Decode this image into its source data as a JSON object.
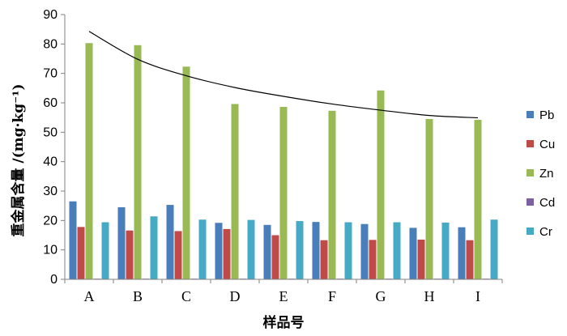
{
  "chart_data": {
    "type": "bar",
    "xlabel": "样品号",
    "ylabel": "重金属含量 /(mg·kg⁻¹)",
    "ylim": [
      0,
      90
    ],
    "yticks": [
      0,
      10,
      20,
      30,
      40,
      50,
      60,
      70,
      80,
      90
    ],
    "categories": [
      "A",
      "B",
      "C",
      "D",
      "E",
      "F",
      "G",
      "H",
      "I"
    ],
    "legend_position": "right",
    "series": [
      {
        "name": "Pb",
        "color": "#4a7ebb",
        "values": [
          26.5,
          24.5,
          25.3,
          19.2,
          18.5,
          19.5,
          18.8,
          17.5,
          17.7
        ]
      },
      {
        "name": "Cu",
        "color": "#be4b48",
        "values": [
          17.8,
          16.6,
          16.4,
          17.1,
          15.0,
          13.3,
          13.4,
          13.5,
          13.3
        ]
      },
      {
        "name": "Zn",
        "color": "#98b954",
        "values": [
          80.3,
          79.6,
          72.3,
          59.6,
          58.6,
          57.3,
          64.2,
          54.5,
          54.2
        ]
      },
      {
        "name": "Cd",
        "color": "#7d60a0",
        "values": [
          0.2,
          0.2,
          0.2,
          0.2,
          0.2,
          0.2,
          0.2,
          0.2,
          0.2
        ]
      },
      {
        "name": "Cr",
        "color": "#46aac5",
        "values": [
          19.4,
          21.4,
          20.3,
          20.2,
          19.8,
          19.4,
          19.4,
          19.3,
          20.3
        ]
      }
    ],
    "trendline": {
      "type": "logarithmic",
      "color": "#000000",
      "values": [
        84.3,
        74.8,
        69.2,
        65.2,
        62.2,
        59.6,
        57.5,
        55.7,
        54.9
      ]
    }
  }
}
